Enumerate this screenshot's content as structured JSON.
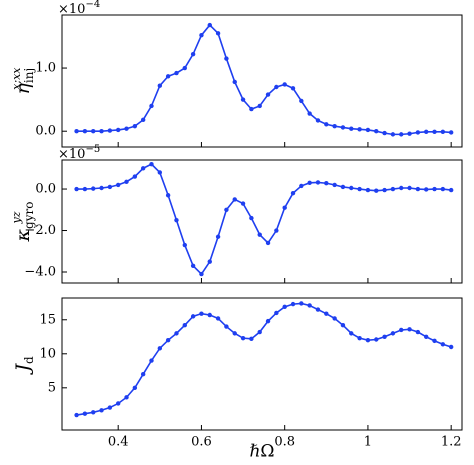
{
  "chart_data": [
    {
      "type": "line",
      "color": "#1f3ff0",
      "ylabel": "η",
      "ylabel_sup": "x;xx",
      "ylabel_sub": "inj",
      "offset_text": "×10",
      "offset_exp": "−4",
      "x": [
        0.3,
        0.32,
        0.34,
        0.36,
        0.38,
        0.4,
        0.42,
        0.44,
        0.46,
        0.48,
        0.5,
        0.52,
        0.54,
        0.56,
        0.58,
        0.6,
        0.62,
        0.64,
        0.66,
        0.68,
        0.7,
        0.72,
        0.74,
        0.76,
        0.78,
        0.8,
        0.82,
        0.84,
        0.86,
        0.88,
        0.9,
        0.92,
        0.94,
        0.96,
        0.98,
        1.0,
        1.02,
        1.04,
        1.06,
        1.08,
        1.1,
        1.12,
        1.14,
        1.16,
        1.18,
        1.2
      ],
      "values": [
        0.0,
        0.0,
        0.0,
        0.0,
        0.01,
        0.02,
        0.04,
        0.08,
        0.18,
        0.4,
        0.72,
        0.87,
        0.92,
        1.0,
        1.22,
        1.52,
        1.68,
        1.55,
        1.15,
        0.78,
        0.5,
        0.35,
        0.4,
        0.58,
        0.7,
        0.74,
        0.68,
        0.48,
        0.28,
        0.17,
        0.11,
        0.08,
        0.06,
        0.04,
        0.03,
        0.02,
        0.0,
        -0.03,
        -0.05,
        -0.05,
        -0.04,
        -0.02,
        -0.01,
        -0.01,
        -0.01,
        -0.02
      ],
      "xlim": [
        0.265,
        1.226
      ],
      "ylim": [
        -0.25,
        1.84
      ],
      "yticks": [
        {
          "value": 0,
          "label": "0.0"
        },
        {
          "value": 1,
          "label": "1.0"
        }
      ]
    },
    {
      "type": "line",
      "color": "#1f3ff0",
      "ylabel": "κ",
      "ylabel_sup": "yz",
      "ylabel_sub": "gyro",
      "offset_text": "×10",
      "offset_exp": "−5",
      "x": [
        0.3,
        0.32,
        0.34,
        0.36,
        0.38,
        0.4,
        0.42,
        0.44,
        0.46,
        0.48,
        0.5,
        0.52,
        0.54,
        0.56,
        0.58,
        0.6,
        0.62,
        0.64,
        0.66,
        0.68,
        0.7,
        0.72,
        0.74,
        0.76,
        0.78,
        0.8,
        0.82,
        0.84,
        0.86,
        0.88,
        0.9,
        0.92,
        0.94,
        0.96,
        0.98,
        1.0,
        1.02,
        1.04,
        1.06,
        1.08,
        1.1,
        1.12,
        1.14,
        1.16,
        1.18,
        1.2
      ],
      "values": [
        0.0,
        0.0,
        0.02,
        0.05,
        0.1,
        0.2,
        0.35,
        0.6,
        1.0,
        1.2,
        0.8,
        -0.3,
        -1.5,
        -2.7,
        -3.7,
        -4.1,
        -3.5,
        -2.3,
        -1.0,
        -0.5,
        -0.7,
        -1.4,
        -2.2,
        -2.6,
        -2.0,
        -0.9,
        -0.2,
        0.15,
        0.3,
        0.32,
        0.28,
        0.2,
        0.1,
        0.05,
        0.0,
        -0.05,
        -0.08,
        -0.05,
        0.0,
        0.05,
        0.05,
        0.0,
        -0.02,
        0.0,
        0.0,
        -0.05
      ],
      "xlim": [
        0.265,
        1.226
      ],
      "ylim": [
        -4.53,
        1.4
      ],
      "yticks": [
        {
          "value": -4,
          "label": "−4.0"
        },
        {
          "value": -2,
          "label": "−2.0"
        },
        {
          "value": 0,
          "label": "0.0"
        }
      ]
    },
    {
      "type": "line",
      "color": "#1f3ff0",
      "ylabel": "J",
      "ylabel_sub": "d",
      "xlabel": "ℏΩ",
      "x": [
        0.3,
        0.32,
        0.34,
        0.36,
        0.38,
        0.4,
        0.42,
        0.44,
        0.46,
        0.48,
        0.5,
        0.52,
        0.54,
        0.56,
        0.58,
        0.6,
        0.62,
        0.64,
        0.66,
        0.68,
        0.7,
        0.72,
        0.74,
        0.76,
        0.78,
        0.8,
        0.82,
        0.84,
        0.86,
        0.88,
        0.9,
        0.92,
        0.94,
        0.96,
        0.98,
        1.0,
        1.02,
        1.04,
        1.06,
        1.08,
        1.1,
        1.12,
        1.14,
        1.16,
        1.18,
        1.2
      ],
      "values": [
        1.0,
        1.2,
        1.4,
        1.7,
        2.1,
        2.7,
        3.6,
        5.0,
        7.0,
        9.0,
        10.8,
        12.0,
        13.0,
        14.2,
        15.5,
        15.9,
        15.7,
        15.2,
        14.0,
        13.0,
        12.3,
        12.2,
        13.2,
        14.8,
        16.0,
        16.9,
        17.3,
        17.4,
        17.1,
        16.5,
        15.9,
        15.2,
        14.2,
        13.0,
        12.3,
        12.0,
        12.1,
        12.5,
        13.0,
        13.5,
        13.6,
        13.2,
        12.5,
        11.9,
        11.4,
        11.0
      ],
      "xlim": [
        0.265,
        1.226
      ],
      "ylim": [
        -1.2,
        18.2
      ],
      "xticks": [
        0.4,
        0.6,
        0.8,
        1.0,
        1.2
      ],
      "yticks": [
        5,
        10,
        15
      ]
    }
  ]
}
